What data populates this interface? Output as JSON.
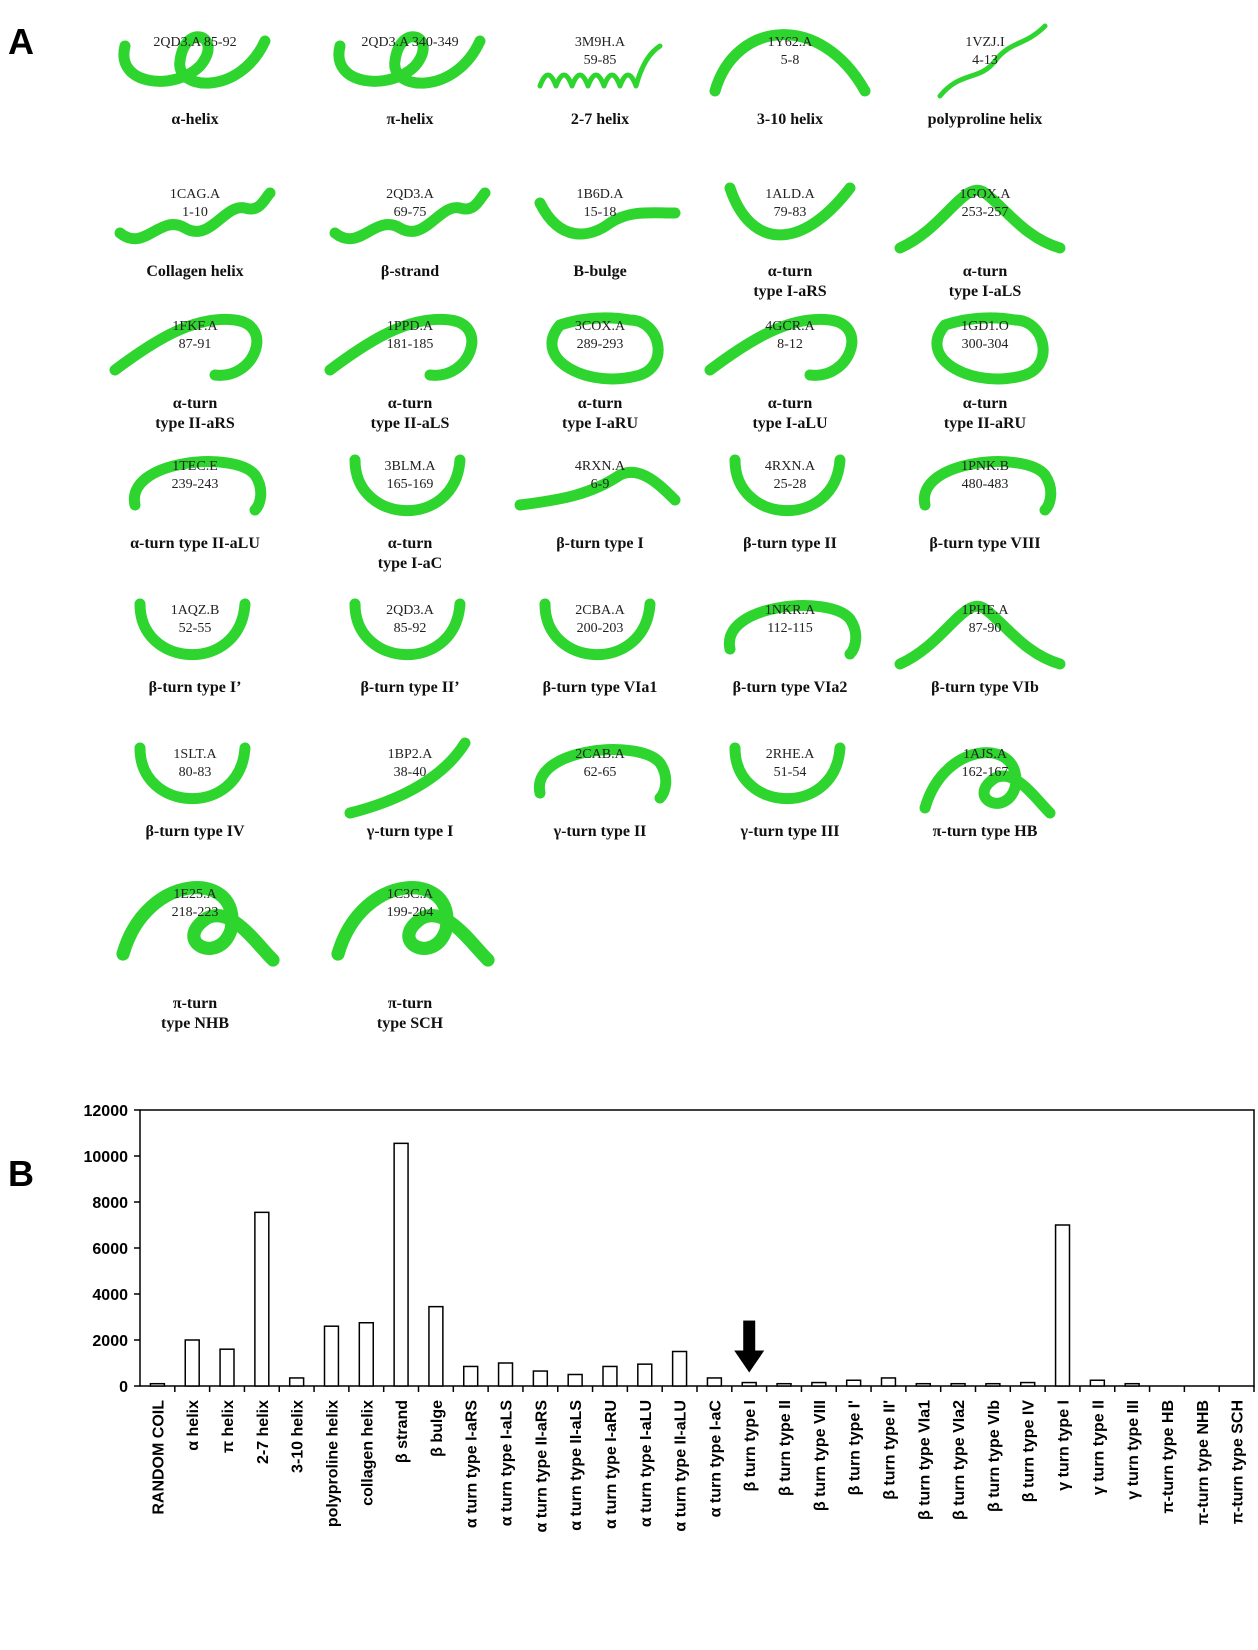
{
  "panel_a": {
    "letter": "A",
    "structures": [
      {
        "pdb": "2QD3.A 85-92",
        "range": "",
        "caption": [
          "α-helix"
        ],
        "shape": "loop2"
      },
      {
        "pdb": "2QD3.A 340-349",
        "range": "",
        "caption": [
          "π-helix"
        ],
        "shape": "loop2"
      },
      {
        "pdb": "3M9H.A",
        "range": "59-85",
        "caption": [
          "2-7 helix"
        ],
        "shape": "spring"
      },
      {
        "pdb": "1Y62.A",
        "range": "5-8",
        "caption": [
          "3-10 helix"
        ],
        "shape": "arch"
      },
      {
        "pdb": "1VZJ.I",
        "range": "4-13",
        "caption": [
          "polyproline helix"
        ],
        "shape": "strand"
      },
      {
        "pdb": "1CAG.A",
        "range": "1-10",
        "caption": [
          "Collagen helix"
        ],
        "shape": "wave"
      },
      {
        "pdb": "2QD3.A",
        "range": "69-75",
        "caption": [
          "β-strand"
        ],
        "shape": "wave"
      },
      {
        "pdb": "1B6D.A",
        "range": "15-18",
        "caption": [
          "B-bulge"
        ],
        "shape": "bulge"
      },
      {
        "pdb": "1ALD.A",
        "range": "79-83",
        "caption": [
          "α-turn",
          "type I-aRS"
        ],
        "shape": "v"
      },
      {
        "pdb": "1GOX.A",
        "range": "253-257",
        "caption": [
          "α-turn",
          "type I-aLS"
        ],
        "shape": "peak"
      },
      {
        "pdb": "1FKF.A",
        "range": "87-91",
        "caption": [
          "α-turn",
          "type II-aRS"
        ],
        "shape": "hook"
      },
      {
        "pdb": "1PPD.A",
        "range": "181-185",
        "caption": [
          "α-turn",
          "type II-aLS"
        ],
        "shape": "hook"
      },
      {
        "pdb": "3COX.A",
        "range": "289-293",
        "caption": [
          "α-turn",
          "type I-aRU"
        ],
        "shape": "ring"
      },
      {
        "pdb": "4GCR.A",
        "range": "8-12",
        "caption": [
          "α-turn",
          "type I-aLU"
        ],
        "shape": "hook"
      },
      {
        "pdb": "1GD1.O",
        "range": "300-304",
        "caption": [
          "α-turn",
          "type II-aRU"
        ],
        "shape": "ring"
      },
      {
        "pdb": "1TEC.E",
        "range": "239-243",
        "caption": [
          "α-turn type II-aLU"
        ],
        "shape": "cap"
      },
      {
        "pdb": "3BLM.A",
        "range": "165-169",
        "caption": [
          "α-turn",
          "type I-aC"
        ],
        "shape": "u"
      },
      {
        "pdb": "4RXN.A",
        "range": "6-9",
        "caption": [
          "β-turn type I"
        ],
        "shape": "bump"
      },
      {
        "pdb": "4RXN.A",
        "range": "25-28",
        "caption": [
          "β-turn type II"
        ],
        "shape": "u"
      },
      {
        "pdb": "1PNK.B",
        "range": "480-483",
        "caption": [
          "β-turn type VIII"
        ],
        "shape": "cap"
      },
      {
        "pdb": "1AQZ.B",
        "range": "52-55",
        "caption": [
          "β-turn type I’"
        ],
        "shape": "u"
      },
      {
        "pdb": "2QD3.A",
        "range": "85-92",
        "caption": [
          "β-turn type II’"
        ],
        "shape": "u"
      },
      {
        "pdb": "2CBA.A",
        "range": "200-203",
        "caption": [
          "β-turn type VIa1"
        ],
        "shape": "u"
      },
      {
        "pdb": "1NKR.A",
        "range": "112-115",
        "caption": [
          "β-turn type VIa2"
        ],
        "shape": "cap"
      },
      {
        "pdb": "1PHE.A",
        "range": "87-90",
        "caption": [
          "β-turn type VIb"
        ],
        "shape": "peak"
      },
      {
        "pdb": "1SLT.A",
        "range": "80-83",
        "caption": [
          "β-turn type IV"
        ],
        "shape": "u"
      },
      {
        "pdb": "1BP2.A",
        "range": "38-40",
        "caption": [
          "γ-turn type I"
        ],
        "shape": "diag"
      },
      {
        "pdb": "2CAB.A",
        "range": "62-65",
        "caption": [
          "γ-turn type II"
        ],
        "shape": "cap"
      },
      {
        "pdb": "2RHE.A",
        "range": "51-54",
        "caption": [
          "γ-turn type III"
        ],
        "shape": "u"
      },
      {
        "pdb": "1AJS.A",
        "range": "162-167",
        "caption": [
          "π-turn type HB"
        ],
        "shape": "knot"
      },
      {
        "pdb": "1E25.A",
        "range": "218-223",
        "caption": [
          "π-turn",
          "type NHB"
        ],
        "shape": "knot"
      },
      {
        "pdb": "1C3C.A",
        "range": "199-204",
        "caption": [
          "π-turn",
          "type SCH"
        ],
        "shape": "knot"
      }
    ]
  },
  "panel_b": {
    "letter": "B"
  },
  "colors": {
    "tube": "#2fd52f",
    "tube_dark": "#1a8a1a",
    "bar_fill": "#ffffff",
    "bar_stroke": "#000000"
  },
  "chart_data": {
    "type": "bar",
    "title": "",
    "xlabel": "",
    "ylabel": "",
    "ylim": [
      0,
      12000
    ],
    "yticks": [
      "0",
      "2000",
      "4000",
      "6000",
      "8000",
      "10000",
      "12000"
    ],
    "grid": false,
    "legend": "none",
    "categories": [
      "RANDOM COIL",
      "α helix",
      "π helix",
      "2-7 helix",
      "3-10 helix",
      "polyproline helix",
      "collagen helix",
      "β strand",
      "β bulge",
      "α turn type I-aRS",
      "α turn type I-aLS",
      "α turn type II-aRS",
      "α turn type II-aLS",
      "α turn type I-aRU",
      "α turn type I-aLU",
      "α turn type II-aLU",
      "α turn type I-aC",
      "β turn type I",
      "β turn type II",
      "β turn type VIII",
      "β turn type I'",
      "β turn type II'",
      "β turn type VIa1",
      "β turn type VIa2",
      "β turn type VIb",
      "β turn type IV",
      "γ turn type I",
      "γ turn type II",
      "γ turn type III",
      "π-turn type HB",
      "π-turn type NHB",
      "π-turn type SCH"
    ],
    "values": [
      100,
      2000,
      1600,
      7550,
      350,
      2600,
      2750,
      10550,
      3450,
      850,
      1000,
      650,
      500,
      850,
      950,
      1500,
      350,
      150,
      100,
      150,
      250,
      350,
      100,
      100,
      100,
      150,
      7000,
      250,
      100,
      0,
      0,
      0
    ],
    "highlight_index": 17
  }
}
